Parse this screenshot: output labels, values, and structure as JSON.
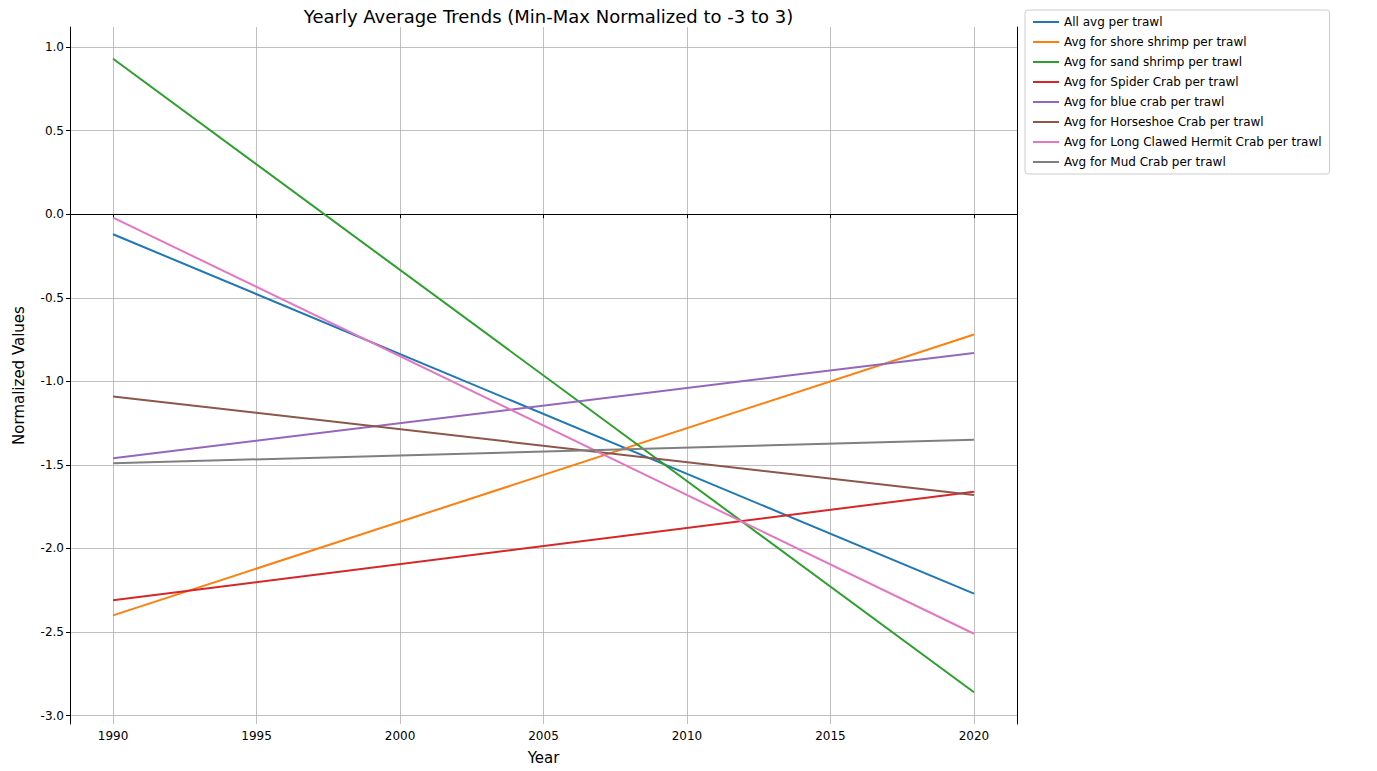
{
  "chart_data": {
    "type": "line",
    "title": "Yearly Average Trends (Min-Max Normalized to -3 to 3)",
    "x_label": "Year",
    "y_label": "Normalized Values",
    "x": [
      1990,
      2020
    ],
    "series": [
      {
        "name": "All avg per trawl",
        "color": "#1f77b4",
        "values": [
          -0.12,
          -2.27
        ]
      },
      {
        "name": "Avg for shore shrimp per trawl",
        "color": "#ff7f0e",
        "values": [
          -2.4,
          -0.72
        ]
      },
      {
        "name": "Avg for sand shrimp per trawl",
        "color": "#2ca02c",
        "values": [
          0.93,
          -2.86
        ]
      },
      {
        "name": "Avg for Spider Crab per trawl",
        "color": "#d62728",
        "values": [
          -2.31,
          -1.66
        ]
      },
      {
        "name": "Avg for blue crab per trawl",
        "color": "#9467bd",
        "values": [
          -1.46,
          -0.83
        ]
      },
      {
        "name": "Avg for Horseshoe Crab per trawl",
        "color": "#8c564b",
        "values": [
          -1.09,
          -1.68
        ]
      },
      {
        "name": "Avg for Long Clawed Hermit Crab per trawl",
        "color": "#e377c2",
        "values": [
          -0.02,
          -2.51
        ]
      },
      {
        "name": "Avg for Mud Crab per trawl",
        "color": "#7f7f7f",
        "values": [
          -1.49,
          -1.35
        ]
      }
    ],
    "xlim": [
      1988.5,
      2021.5
    ],
    "xticks": [
      1990,
      1995,
      2000,
      2005,
      2010,
      2015,
      2020
    ],
    "ylim": [
      -3.05,
      1.12
    ],
    "yticks": [
      {
        "value": -3,
        "label": "-3.0"
      },
      {
        "value": -2.5,
        "label": "-2.5"
      },
      {
        "value": -2,
        "label": "-2.0"
      },
      {
        "value": -1.5,
        "label": "-1.5"
      },
      {
        "value": -1,
        "label": "-1.0"
      },
      {
        "value": -0.5,
        "label": "-0.5"
      },
      {
        "value": 0,
        "label": "0.0"
      },
      {
        "value": 0.5,
        "label": "0.5"
      },
      {
        "value": 1,
        "label": "1.0"
      }
    ],
    "grid": true,
    "legend": "outside upper right"
  }
}
